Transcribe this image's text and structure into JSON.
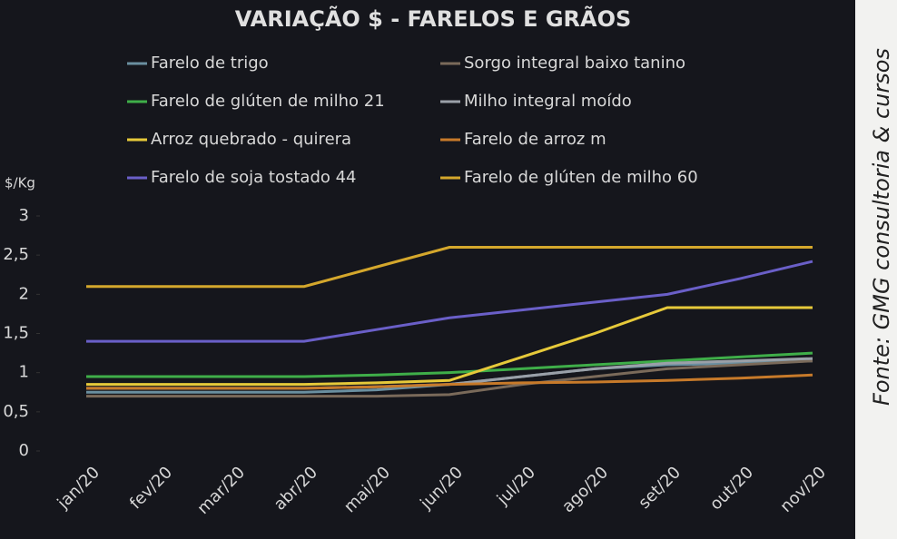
{
  "chart_data": {
    "type": "line",
    "title": "VARIAÇÃO $ - FARELOS E GRÃOS",
    "y_label": "$/Kg",
    "source": "Fonte: GMG consultoria & cursos",
    "categories": [
      "jan/20",
      "fev/20",
      "mar/20",
      "abr/20",
      "mai/20",
      "jun/20",
      "jul/20",
      "ago/20",
      "set/20",
      "out/20",
      "nov/20"
    ],
    "ylim": [
      0,
      3
    ],
    "yticks": [
      0,
      {
        "value": 0.5,
        "label": "0,5"
      },
      1,
      {
        "value": 1.5,
        "label": "1,5"
      },
      2,
      {
        "value": 2.5,
        "label": "2,5"
      },
      3
    ],
    "series": [
      {
        "name": "Farelo de trigo",
        "color": "#6a8fa0",
        "values": [
          0.75,
          0.75,
          0.75,
          0.75,
          0.78,
          0.85,
          0.95,
          1.05,
          1.1,
          1.12,
          1.15
        ]
      },
      {
        "name": "Sorgo integral baixo tanino",
        "color": "#7a6a5a",
        "values": [
          0.7,
          0.7,
          0.7,
          0.7,
          0.7,
          0.72,
          0.85,
          0.95,
          1.05,
          1.1,
          1.15
        ]
      },
      {
        "name": "Farelo de glúten de milho 21",
        "color": "#3fae49",
        "values": [
          0.95,
          0.95,
          0.95,
          0.95,
          0.97,
          1.0,
          1.05,
          1.1,
          1.15,
          1.2,
          1.25
        ]
      },
      {
        "name": "Milho integral moído",
        "color": "#9aa0a8",
        "values": [
          0.8,
          0.8,
          0.8,
          0.8,
          0.82,
          0.85,
          0.95,
          1.05,
          1.12,
          1.15,
          1.18
        ]
      },
      {
        "name": "Arroz quebrado - quirera",
        "color": "#e6c93a",
        "values": [
          0.85,
          0.85,
          0.85,
          0.85,
          0.87,
          0.9,
          1.2,
          1.5,
          1.83,
          1.83,
          1.83
        ]
      },
      {
        "name": "Farelo de arroz m",
        "color": "#c77a2a",
        "values": [
          0.8,
          0.8,
          0.8,
          0.8,
          0.82,
          0.85,
          0.87,
          0.88,
          0.9,
          0.93,
          0.97
        ]
      },
      {
        "name": "Farelo de soja tostado 44",
        "color": "#6a5fc8",
        "values": [
          1.4,
          1.4,
          1.4,
          1.4,
          1.55,
          1.7,
          1.8,
          1.9,
          2.0,
          2.2,
          2.42
        ]
      },
      {
        "name": "Farelo de glúten de milho 60",
        "color": "#d4a72c",
        "values": [
          2.1,
          2.1,
          2.1,
          2.1,
          2.35,
          2.6,
          2.6,
          2.6,
          2.6,
          2.6,
          2.6
        ]
      }
    ]
  }
}
